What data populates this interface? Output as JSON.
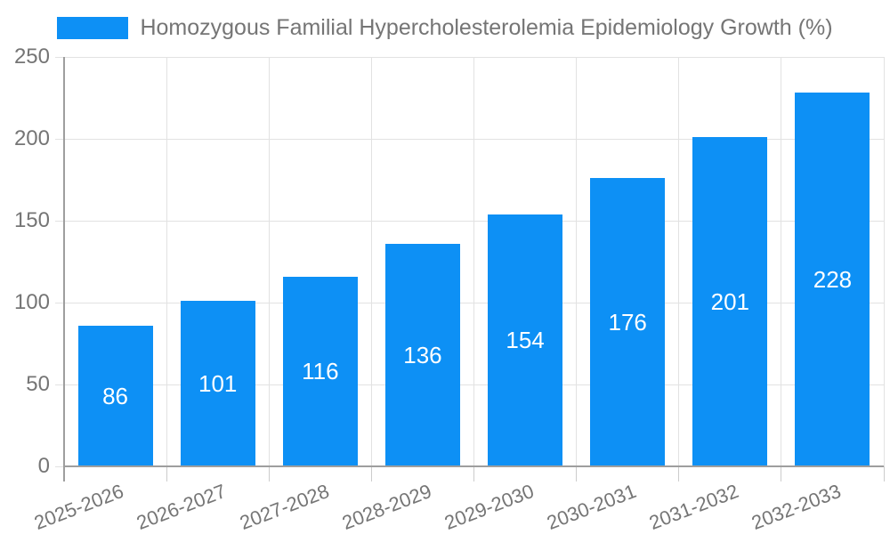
{
  "legend": {
    "label": "Homozygous Familial Hypercholesterolemia Epidemiology Growth (%)"
  },
  "colors": {
    "bar": "#0d90f5",
    "axis": "#9e9e9e",
    "grid": "#e2e2e2",
    "tick": "#cccccc",
    "text": "#757575",
    "bar_label": "#ffffff",
    "background": "#ffffff"
  },
  "chart_data": {
    "type": "bar",
    "title": "Homozygous Familial Hypercholesterolemia Epidemiology Growth (%)",
    "categories": [
      "2025-2026",
      "2026-2027",
      "2027-2028",
      "2028-2029",
      "2029-2030",
      "2030-2031",
      "2031-2032",
      "2032-2033"
    ],
    "values": [
      86,
      101,
      116,
      136,
      154,
      176,
      201,
      228
    ],
    "xlabel": "",
    "ylabel": "",
    "ylim": [
      0,
      250
    ],
    "yticks": [
      0,
      50,
      100,
      150,
      200,
      250
    ],
    "grid": true,
    "legend_position": "top",
    "bar_value_labels": true
  }
}
